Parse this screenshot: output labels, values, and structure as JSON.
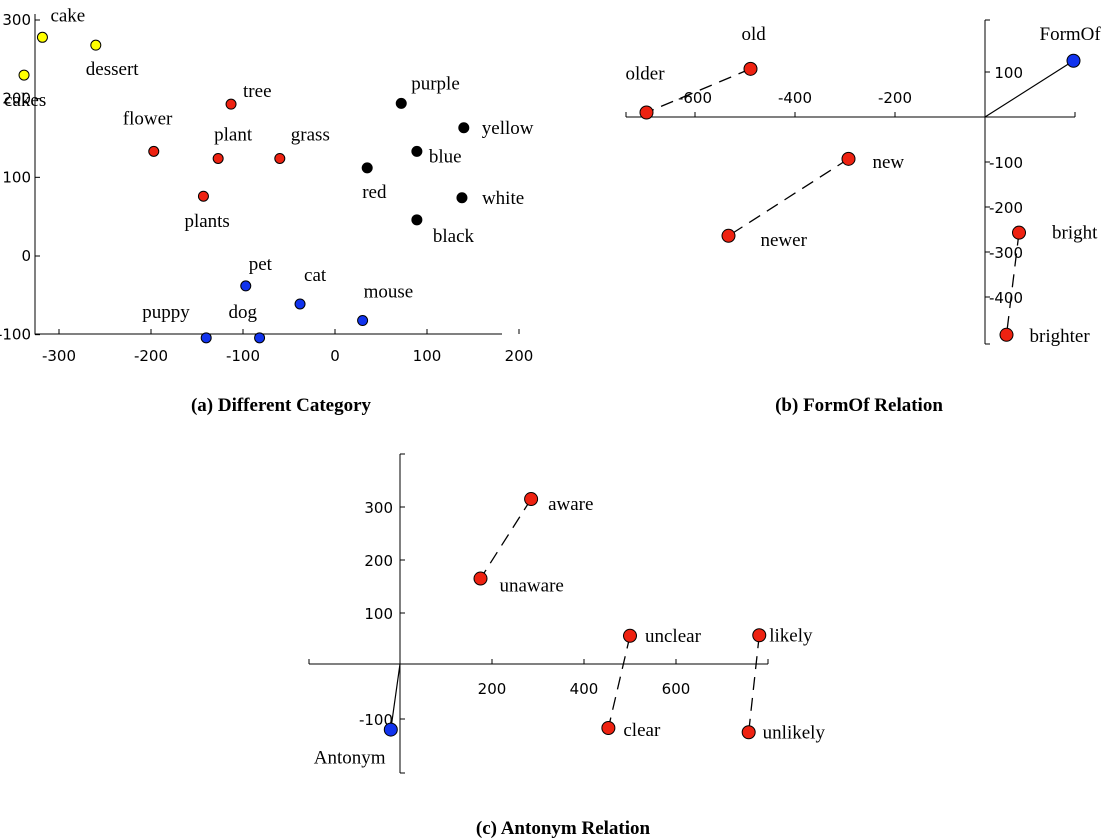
{
  "colors": {
    "yellow": "#ffff00",
    "red": "#ee2211",
    "black": "#000000",
    "blue": "#1133ee"
  },
  "chart_data": [
    {
      "type": "scatter",
      "caption": "(a) Different Category",
      "xlim": [
        -400,
        200
      ],
      "ylim": [
        -105,
        300
      ],
      "xticks": [
        "-400",
        "-300",
        "-200",
        "-100",
        "0",
        "100",
        "200"
      ],
      "yticks": [
        "-100",
        "0",
        "100",
        "200",
        "300"
      ],
      "points": [
        {
          "label": "cake",
          "x": -318,
          "y": 278,
          "color": "yellow"
        },
        {
          "label": "dessert",
          "x": -260,
          "y": 268,
          "color": "yellow"
        },
        {
          "label": "cakes",
          "x": -338,
          "y": 230,
          "color": "yellow"
        },
        {
          "label": "tree",
          "x": -113,
          "y": 193,
          "color": "red"
        },
        {
          "label": "flower",
          "x": -197,
          "y": 133,
          "color": "red"
        },
        {
          "label": "plant",
          "x": -127,
          "y": 124,
          "color": "red"
        },
        {
          "label": "grass",
          "x": -60,
          "y": 124,
          "color": "red"
        },
        {
          "label": "plants",
          "x": -143,
          "y": 76,
          "color": "red"
        },
        {
          "label": "purple",
          "x": 72,
          "y": 194,
          "color": "black"
        },
        {
          "label": "yellow",
          "x": 140,
          "y": 163,
          "color": "black"
        },
        {
          "label": "blue",
          "x": 89,
          "y": 133,
          "color": "black"
        },
        {
          "label": "red",
          "x": 35,
          "y": 112,
          "color": "black"
        },
        {
          "label": "white",
          "x": 138,
          "y": 74,
          "color": "black"
        },
        {
          "label": "black",
          "x": 89,
          "y": 46,
          "color": "black"
        },
        {
          "label": "pet",
          "x": -97,
          "y": -38,
          "color": "blue"
        },
        {
          "label": "cat",
          "x": -38,
          "y": -61,
          "color": "blue"
        },
        {
          "label": "mouse",
          "x": 30,
          "y": -82,
          "color": "blue"
        },
        {
          "label": "puppy",
          "x": -140,
          "y": -104,
          "color": "blue"
        },
        {
          "label": "dog",
          "x": -82,
          "y": -104,
          "color": "blue"
        }
      ]
    },
    {
      "type": "scatter",
      "caption": "(b) FormOf Relation",
      "xlim": [
        -795,
        200
      ],
      "ylim": [
        -500,
        130
      ],
      "xticks": [
        "-600",
        "-400",
        "-200"
      ],
      "yticks": [
        "100",
        "-100",
        "-200",
        "-300",
        "-400"
      ],
      "points": [
        {
          "label": "FormOf",
          "x": 157,
          "y": 125,
          "color": "blue"
        },
        {
          "label": "old",
          "x": -489,
          "y": 107,
          "color": "red"
        },
        {
          "label": "older",
          "x": -697,
          "y": 10,
          "color": "red"
        },
        {
          "label": "new",
          "x": -293,
          "y": -93,
          "color": "red"
        },
        {
          "label": "newer",
          "x": -533,
          "y": -264,
          "color": "red"
        },
        {
          "label": "bright",
          "x": 48,
          "y": -257,
          "color": "red"
        },
        {
          "label": "brighter",
          "x": 23,
          "y": -484,
          "color": "red"
        }
      ],
      "pairs": [
        [
          "old",
          "older"
        ],
        [
          "new",
          "newer"
        ],
        [
          "bright",
          "brighter"
        ]
      ],
      "vectors": [
        [
          "origin",
          "FormOf"
        ]
      ]
    },
    {
      "type": "scatter",
      "caption": "(c) Antonym Relation",
      "xlim": [
        -200,
        800
      ],
      "ylim": [
        -210,
        395
      ],
      "xticks": [
        "200",
        "400",
        "600"
      ],
      "yticks": [
        "300",
        "200",
        "100",
        "-100"
      ],
      "points": [
        {
          "label": "Antonym",
          "x": -20,
          "y": -120,
          "color": "blue"
        },
        {
          "label": "aware",
          "x": 285,
          "y": 315,
          "color": "red"
        },
        {
          "label": "unaware",
          "x": 175,
          "y": 165,
          "color": "red"
        },
        {
          "label": "unclear",
          "x": 500,
          "y": 57,
          "color": "red"
        },
        {
          "label": "clear",
          "x": 453,
          "y": -117,
          "color": "red"
        },
        {
          "label": "likely",
          "x": 781,
          "y": 58,
          "color": "red"
        },
        {
          "label": "unlikely",
          "x": 758,
          "y": -125,
          "color": "red"
        }
      ],
      "pairs": [
        [
          "aware",
          "unaware"
        ],
        [
          "unclear",
          "clear"
        ],
        [
          "likely",
          "unlikely"
        ]
      ],
      "vectors": [
        [
          "origin",
          "Antonym"
        ]
      ]
    }
  ]
}
